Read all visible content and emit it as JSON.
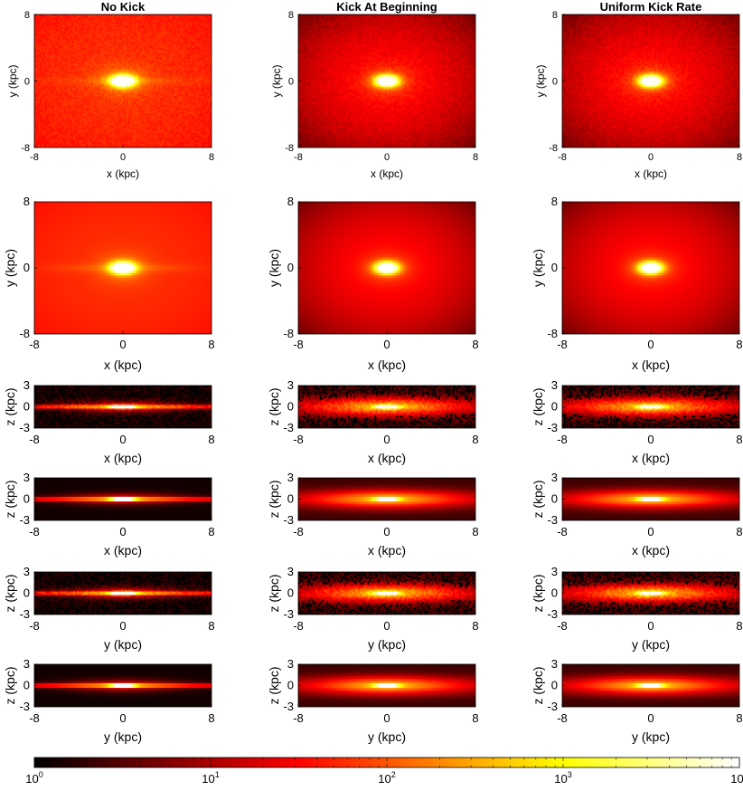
{
  "chart_data": {
    "type": "heatmap",
    "columns": [
      {
        "key": "no-kick",
        "title": "No Kick"
      },
      {
        "key": "kick-at-beginning",
        "title": "Kick At Beginning"
      },
      {
        "key": "uniform-kick-rate",
        "title": "Uniform Kick Rate"
      }
    ],
    "rows": [
      {
        "key": "xy-sample",
        "xlabel": "x (kpc)",
        "ylabel": "y (kpc)",
        "xlim": [
          -8,
          8
        ],
        "ylim": [
          -8,
          8
        ],
        "xticks": [
          "-8",
          "0",
          "8"
        ],
        "yticks": [
          "8",
          "0",
          "-8"
        ],
        "smooth": false
      },
      {
        "key": "xy-smooth",
        "xlabel": "x (kpc)",
        "ylabel": "y (kpc)",
        "xlim": [
          -8,
          8
        ],
        "ylim": [
          -8,
          8
        ],
        "xticks": [
          "-8",
          "0",
          "8"
        ],
        "yticks": [
          "8",
          "0",
          "-8"
        ],
        "smooth": true
      },
      {
        "key": "xz-sample",
        "xlabel": "x (kpc)",
        "ylabel": "z (kpc)",
        "xlim": [
          -8,
          8
        ],
        "ylim": [
          -3,
          3
        ],
        "xticks": [
          "-8",
          "0",
          "8"
        ],
        "yticks": [
          "3",
          "0",
          "-3"
        ],
        "smooth": false
      },
      {
        "key": "xz-smooth",
        "xlabel": "x (kpc)",
        "ylabel": "z (kpc)",
        "xlim": [
          -8,
          8
        ],
        "ylim": [
          -3,
          3
        ],
        "xticks": [
          "-8",
          "0",
          "8"
        ],
        "yticks": [
          "3",
          "0",
          "-3"
        ],
        "smooth": true
      },
      {
        "key": "yz-sample",
        "xlabel": "y (kpc)",
        "ylabel": "z (kpc)",
        "xlim": [
          -8,
          8
        ],
        "ylim": [
          -3,
          3
        ],
        "xticks": [
          "-8",
          "0",
          "8"
        ],
        "yticks": [
          "3",
          "0",
          "-3"
        ],
        "smooth": false
      },
      {
        "key": "yz-smooth",
        "xlabel": "y (kpc)",
        "ylabel": "z (kpc)",
        "xlim": [
          -8,
          8
        ],
        "ylim": [
          -3,
          3
        ],
        "xticks": [
          "-8",
          "0",
          "8"
        ],
        "yticks": [
          "3",
          "0",
          "-3"
        ],
        "smooth": true
      }
    ],
    "colorbar": {
      "scale": "log",
      "range": [
        1,
        10000
      ],
      "colormap": "hot",
      "tick_labels": [
        {
          "base": "10",
          "exp": "0"
        },
        {
          "base": "10",
          "exp": "1"
        },
        {
          "base": "10",
          "exp": "2"
        },
        {
          "base": "10",
          "exp": "3"
        },
        {
          "base": "10",
          "exp": "4"
        }
      ]
    }
  }
}
